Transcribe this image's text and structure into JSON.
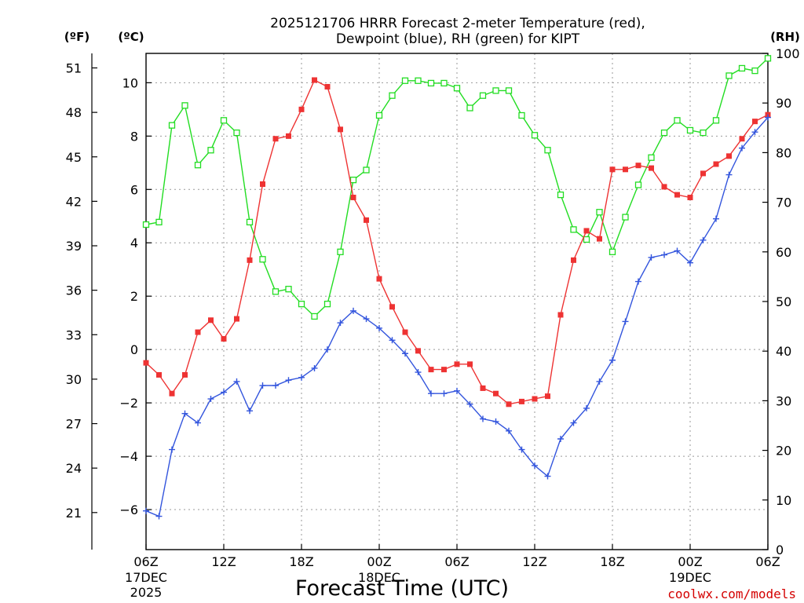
{
  "chart_data": {
    "type": "line",
    "title_line1": "2025121706 HRRR Forecast 2-meter Temperature (red),",
    "title_line2": "Dewpoint (blue), RH (green) for KIPT",
    "xlabel": "Forecast Time (UTC)",
    "credit": "coolwx.com/models",
    "left_unit_f": "(ºF)",
    "left_unit_c": "(ºC)",
    "right_unit": "(RH)",
    "x_hours": [
      0,
      1,
      2,
      3,
      4,
      5,
      6,
      7,
      8,
      9,
      10,
      11,
      12,
      13,
      14,
      15,
      16,
      17,
      18,
      19,
      20,
      21,
      22,
      23,
      24,
      25,
      26,
      27,
      28,
      29,
      30,
      31,
      32,
      33,
      34,
      35,
      36,
      37,
      38,
      39,
      40,
      41,
      42,
      43,
      44,
      45,
      46,
      47,
      48
    ],
    "xlim": [
      0,
      48
    ],
    "x_ticks": [
      {
        "hour": 0,
        "label": "06Z",
        "sub1": "17DEC",
        "sub2": "2025"
      },
      {
        "hour": 6,
        "label": "12Z",
        "sub1": "",
        "sub2": ""
      },
      {
        "hour": 12,
        "label": "18Z",
        "sub1": "",
        "sub2": ""
      },
      {
        "hour": 18,
        "label": "00Z",
        "sub1": "18DEC",
        "sub2": ""
      },
      {
        "hour": 24,
        "label": "06Z",
        "sub1": "",
        "sub2": ""
      },
      {
        "hour": 30,
        "label": "12Z",
        "sub1": "",
        "sub2": ""
      },
      {
        "hour": 36,
        "label": "18Z",
        "sub1": "",
        "sub2": ""
      },
      {
        "hour": 42,
        "label": "00Z",
        "sub1": "19DEC",
        "sub2": ""
      },
      {
        "hour": 48,
        "label": "06Z",
        "sub1": "",
        "sub2": ""
      }
    ],
    "celsius_axis": {
      "ylim": [
        -7.5,
        11.1
      ],
      "ticks": [
        -6,
        -4,
        -2,
        0,
        2,
        4,
        6,
        8,
        10
      ]
    },
    "fahrenheit_axis": {
      "ticks": [
        21,
        24,
        27,
        30,
        33,
        36,
        39,
        42,
        45,
        48,
        51
      ]
    },
    "rh_axis": {
      "ylim": [
        0,
        100
      ],
      "ticks": [
        0,
        10,
        20,
        30,
        40,
        50,
        60,
        70,
        80,
        90,
        100
      ]
    },
    "series": [
      {
        "name": "Temperature",
        "units": "C",
        "color": "#ee3333",
        "marker": "filled-square",
        "values": [
          -0.5,
          -0.95,
          -1.65,
          -0.95,
          0.65,
          1.1,
          0.4,
          1.15,
          3.35,
          6.2,
          7.9,
          8.0,
          9.0,
          10.1,
          9.85,
          8.25,
          5.7,
          4.85,
          2.65,
          1.6,
          0.65,
          -0.05,
          -0.75,
          -0.75,
          -0.55,
          -0.55,
          -1.45,
          -1.65,
          -2.05,
          -1.95,
          -1.85,
          -1.75,
          1.3,
          3.35,
          4.45,
          4.15,
          6.75,
          6.75,
          6.9,
          6.8,
          6.1,
          5.8,
          5.7,
          6.6,
          6.95,
          7.25,
          7.9,
          8.55,
          8.8
        ]
      },
      {
        "name": "Dewpoint",
        "units": "C",
        "color": "#3355dd",
        "marker": "plus",
        "values": [
          -6.05,
          -6.25,
          -3.75,
          -2.4,
          -2.75,
          -1.85,
          -1.6,
          -1.2,
          -2.3,
          -1.35,
          -1.35,
          -1.15,
          -1.05,
          -0.7,
          0.0,
          1.0,
          1.45,
          1.15,
          0.8,
          0.35,
          -0.15,
          -0.85,
          -1.65,
          -1.65,
          -1.55,
          -2.05,
          -2.6,
          -2.7,
          -3.05,
          -3.75,
          -4.35,
          -4.75,
          -3.35,
          -2.75,
          -2.2,
          -1.2,
          -0.4,
          1.05,
          2.55,
          3.45,
          3.55,
          3.7,
          3.25,
          4.1,
          4.9,
          6.55,
          7.55,
          8.15,
          8.7
        ]
      },
      {
        "name": "RH",
        "units": "%",
        "color": "#22dd22",
        "marker": "open-square",
        "values": [
          65.5,
          66.0,
          85.5,
          89.5,
          77.5,
          80.5,
          86.5,
          84.0,
          66.0,
          58.5,
          52.0,
          52.5,
          49.5,
          47.0,
          49.5,
          60.0,
          74.5,
          76.5,
          87.5,
          91.5,
          94.5,
          94.5,
          94.0,
          94.0,
          93.0,
          89.0,
          91.5,
          92.5,
          92.5,
          87.5,
          83.5,
          80.5,
          71.5,
          64.5,
          62.5,
          68.0,
          60.0,
          67.0,
          73.5,
          79.0,
          84.0,
          86.5,
          84.5,
          84.0,
          86.5,
          95.5,
          97.0,
          96.5,
          99.0
        ]
      }
    ]
  }
}
